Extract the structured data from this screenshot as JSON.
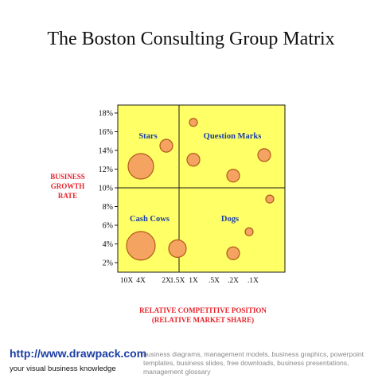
{
  "page": {
    "title": "The Boston Consulting Group Matrix",
    "footer_url": "http://www.drawpack.com",
    "footer_tagline": "your visual business knowledge",
    "footer_description": "business diagrams, management models, business graphics, powerpoint templates, business slides, free downloads, business presentations, management glossary"
  },
  "chart_data": {
    "type": "scatter",
    "title": "The Boston Consulting Group Matrix",
    "ylabel": [
      "BUSINESS",
      "GROWTH",
      "RATE"
    ],
    "xlabel": [
      "RELATIVE COMPETITIVE POSITION",
      "(RELATIVE MARKET SHARE)"
    ],
    "y_ticks": [
      "2%",
      "4%",
      "6%",
      "8%",
      "10%",
      "12%",
      "14%",
      "16%",
      "18%"
    ],
    "x_ticks": [
      "10X",
      "4X",
      "2X",
      "1.5X",
      "1X",
      ".5X",
      ".2X",
      ".1X"
    ],
    "ylim": [
      1,
      19
    ],
    "y_divider": 10,
    "x_divider": "1X",
    "quadrants": [
      {
        "name": "Stars",
        "position": "top-left"
      },
      {
        "name": "Question Marks",
        "position": "top-right"
      },
      {
        "name": "Cash Cows",
        "position": "bottom-left"
      },
      {
        "name": "Dogs",
        "position": "bottom-right"
      }
    ],
    "points": [
      {
        "x": "4X",
        "y": 12.3,
        "size": "large"
      },
      {
        "x": "2X",
        "y": 14.5,
        "size": "small"
      },
      {
        "x": "1X",
        "y": 17.0,
        "size": "tiny"
      },
      {
        "x": "1X",
        "y": 13.0,
        "size": "small"
      },
      {
        "x": ".2X",
        "y": 11.3,
        "size": "small"
      },
      {
        "x": ".1X",
        "y": 13.5,
        "size": "small"
      },
      {
        "x": ".1X",
        "y": 8.8,
        "size": "tiny"
      },
      {
        "x": ".1X",
        "y": 5.3,
        "size": "tiny"
      },
      {
        "x": "4X",
        "y": 3.8,
        "size": "xlarge"
      },
      {
        "x": "1.5X",
        "y": 3.5,
        "size": "medium"
      },
      {
        "x": ".2X",
        "y": 3.0,
        "size": "small"
      }
    ],
    "colors": {
      "plot_background": "#ffff66",
      "plot_border": "#1a1a1a",
      "bubble_fill": "#f4a460",
      "bubble_stroke": "#b1591c",
      "quadrant_label": "#1b3ea5",
      "axis_title": "#e8212a"
    }
  }
}
